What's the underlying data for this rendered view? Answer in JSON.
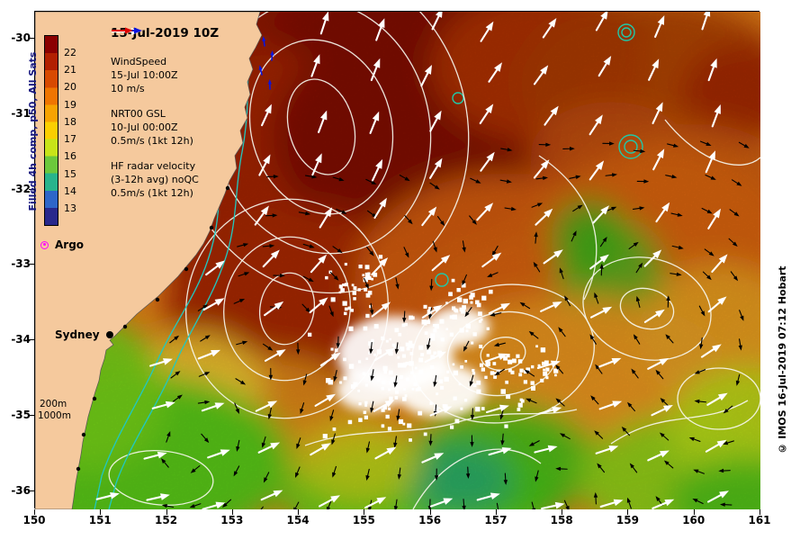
{
  "title": "15-Jul-2019 10Z",
  "colorbar": {
    "label": "Filled 4h comp, p50, All Sats",
    "ticks": [
      "22",
      "21",
      "20",
      "19",
      "18",
      "17",
      "16",
      "15",
      "14",
      "13"
    ],
    "colors": [
      "#8b0000",
      "#b22000",
      "#d84a00",
      "#ef7500",
      "#f7a300",
      "#fbcf00",
      "#c8e418",
      "#6cc83c",
      "#28b48c",
      "#2e66c8",
      "#28288c"
    ]
  },
  "legend": {
    "wind_title": "WindSpeed",
    "wind_date": "15-Jul 10:00Z",
    "wind_scale": "10 m/s",
    "gsl_title": "NRT00 GSL",
    "gsl_date": "10-Jul 00:00Z",
    "gsl_scale": "0.5m/s (1kt 12h)",
    "hf_title": "HF radar velocity",
    "hf_subtitle": "(3-12h avg) noQC",
    "hf_scale": "0.5m/s (1kt 12h)"
  },
  "markers": {
    "argo_label": "Argo",
    "sydney_label": "Sydney",
    "depth_200": "200m",
    "depth_1000": "1000m"
  },
  "axes": {
    "x_ticks": [
      "150",
      "151",
      "152",
      "153",
      "154",
      "155",
      "156",
      "157",
      "158",
      "159",
      "160",
      "161"
    ],
    "y_ticks": [
      "-30",
      "-31",
      "-32",
      "-33",
      "-34",
      "-35",
      "-36"
    ]
  },
  "credit": "© IMOS 16-Jul-2019 07:12 Hobart",
  "colors": {
    "land": "#f5c99d",
    "ocean_base": "#dd7d18",
    "wind_arrow": "#ffffff",
    "gsl_arrow": "#000000",
    "hf_arrow_blue": "#0a14e0",
    "hf_arrow_red": "#e00000",
    "argo": "#ff00ff",
    "bathy": "#20c8c0",
    "contour": "#f5f5ec"
  }
}
